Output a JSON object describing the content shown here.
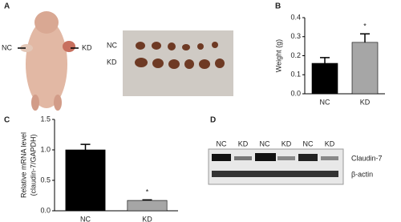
{
  "panel_labels": [
    "A",
    "B",
    "C",
    "D"
  ],
  "panel_a": {
    "mouse_labels": [
      "NC",
      "KD"
    ],
    "row_labels": [
      "NC",
      "KD"
    ]
  },
  "chart_data": [
    {
      "type": "bar",
      "y_label": [
        "Weight (g)"
      ],
      "categories": [
        "NC",
        "KD"
      ],
      "values": [
        0.16,
        0.27
      ],
      "errors": [
        0.03,
        0.045
      ],
      "colors": [
        "#000000",
        "#a6a6a6"
      ],
      "significance_label": "*",
      "ylim": [
        0,
        0.4
      ],
      "yticks": [
        {
          "value": 0,
          "label": "0.0"
        },
        0.1,
        0.2,
        0.3,
        0.4
      ]
    },
    {
      "type": "bar",
      "y_label": [
        "Relative mRNA level",
        "(claudin-7/GAPDH)"
      ],
      "categories": [
        "NC",
        "KD"
      ],
      "values": [
        1.0,
        0.17
      ],
      "errors": [
        0.09,
        0.01
      ],
      "colors": [
        "#000000",
        "#a6a6a6"
      ],
      "significance_label": "*",
      "ylim": [
        0,
        1.5
      ],
      "yticks": [
        {
          "value": 0,
          "label": "0.0"
        },
        0.5,
        {
          "value": 1,
          "label": "1.0"
        },
        1.5
      ]
    }
  ],
  "panel_d": {
    "lanes": [
      "NC",
      "KD",
      "NC",
      "KD",
      "NC",
      "KD"
    ],
    "bands": [
      "Claudin-7",
      "β-actin"
    ]
  }
}
